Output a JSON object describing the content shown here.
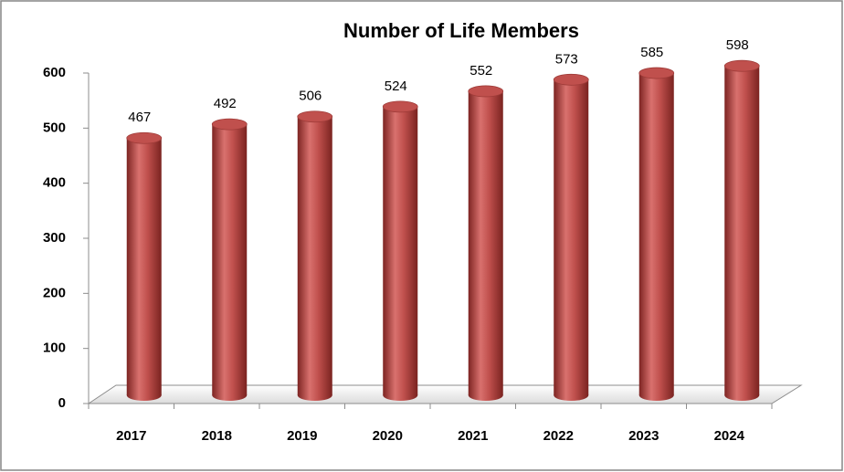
{
  "chart_data": {
    "type": "bar",
    "title": "Number of Life Members",
    "categories": [
      "2017",
      "2018",
      "2019",
      "2020",
      "2021",
      "2022",
      "2023",
      "2024"
    ],
    "values": [
      467,
      492,
      506,
      524,
      552,
      573,
      585,
      598
    ],
    "color": "#c0504d",
    "ylim": [
      0,
      600
    ],
    "yticks": [
      0,
      100,
      200,
      300,
      400,
      500,
      600
    ],
    "grid": false
  }
}
